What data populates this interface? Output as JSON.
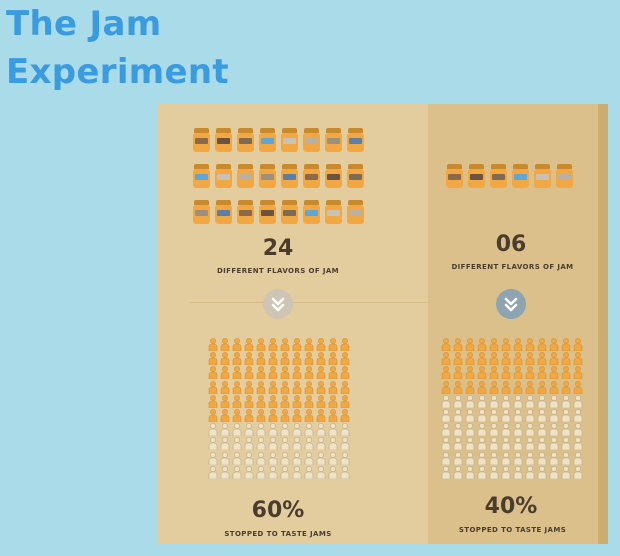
{
  "title": {
    "line1": "The Jam",
    "line2": "Experiment"
  },
  "left": {
    "flavors_number": "24",
    "flavors_label": "DIFFERENT FLAVORS OF JAM",
    "percent": "60%",
    "percent_label": "STOPPED TO TASTE JAMS",
    "stopped_fraction": 0.6
  },
  "right": {
    "flavors_number": "06",
    "flavors_label": "DIFFERENT FLAVORS OF JAM",
    "percent": "40%",
    "percent_label": "STOPPED TO TASTE JAMS",
    "stopped_fraction": 0.4
  },
  "colors": {
    "background": "#a9dce8",
    "title": "#3b9be0",
    "jar": "#f1a843",
    "person_stopped": "#f1a843",
    "person_passed": "#efe3c6",
    "text": "#4a3d2e"
  },
  "icons": {
    "left_arrow": "chevron-down-circle-icon",
    "right_arrow": "chevron-down-circle-icon",
    "jar": "jam-jar-icon",
    "person": "person-icon"
  }
}
